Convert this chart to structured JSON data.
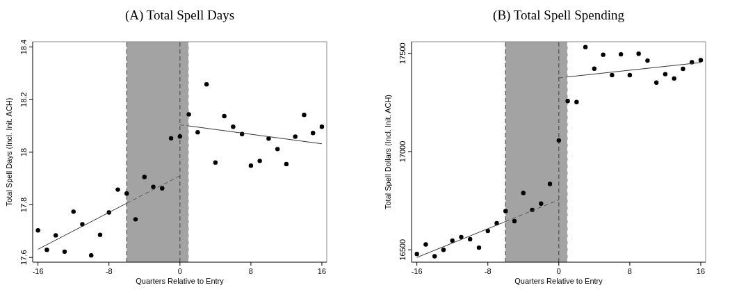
{
  "chart_data": [
    {
      "type": "scatter",
      "title": "(A)  Total Spell Days",
      "xlabel": "Quarters Relative to Entry",
      "ylabel": "Total Spell Days (Incl. Init. ACH)",
      "xlim": [
        -16.6,
        16.55
      ],
      "xticks": [
        -16,
        -8,
        0,
        8,
        16
      ],
      "ylim": [
        17.582,
        18.42
      ],
      "yticks": [
        17.6,
        17.8,
        18,
        18.2,
        18.4
      ],
      "grid": false,
      "series": [
        {
          "color": "#000000",
          "marker": "circle",
          "x": [
            -16,
            -15,
            -14,
            -13,
            -12,
            -11,
            -10,
            -9,
            -8,
            -7,
            -6,
            -5,
            -4,
            -3,
            -2,
            -1,
            0,
            1,
            2,
            3,
            4,
            5,
            6,
            7,
            8,
            9,
            10,
            11,
            12,
            13,
            14,
            15,
            16
          ],
          "values": [
            17.703,
            17.629,
            17.684,
            17.622,
            17.774,
            17.726,
            17.608,
            17.686,
            17.771,
            17.858,
            17.843,
            17.745,
            17.906,
            17.868,
            17.863,
            18.053,
            18.06,
            18.144,
            18.076,
            18.258,
            17.961,
            18.137,
            18.097,
            18.069,
            17.949,
            17.967,
            18.052,
            18.012,
            17.955,
            18.059,
            18.142,
            18.073,
            18.097
          ]
        },
        {
          "type": "line",
          "color": "#333333",
          "line_style": "solid",
          "x": [
            -16,
            -6
          ],
          "values": [
            17.631,
            17.806
          ]
        },
        {
          "type": "line",
          "color": "#555555",
          "line_style": "dashed",
          "x": [
            -6,
            0
          ],
          "values": [
            17.806,
            17.91
          ]
        },
        {
          "type": "line",
          "color": "#555555",
          "line_style": "dashed",
          "x": [
            0,
            1
          ],
          "values": [
            18.104,
            18.1
          ]
        },
        {
          "type": "line",
          "color": "#333333",
          "line_style": "solid",
          "x": [
            1,
            16
          ],
          "values": [
            18.1,
            18.032
          ]
        }
      ],
      "bands": [
        {
          "axis": "x",
          "from": -6,
          "to": 1,
          "color": "#a3a3a3"
        }
      ],
      "ref_lines": [
        {
          "axis": "x",
          "value": -6,
          "color": "#555555",
          "line_style": "dashed"
        },
        {
          "axis": "x",
          "value": 0,
          "color": "#555555",
          "line_style": "dashed"
        },
        {
          "axis": "x",
          "value": 1,
          "color": "#ffffff",
          "line_style": "dashed"
        }
      ]
    },
    {
      "type": "scatter",
      "title": "(B)  Total Spell Spending",
      "xlabel": "Quarters Relative to Entry",
      "ylabel": "Total Spell Dollars (Incl. Init. ACH)",
      "xlim": [
        -16.6,
        16.55
      ],
      "xticks": [
        -16,
        -8,
        0,
        8,
        16
      ],
      "ylim": [
        16437,
        17559
      ],
      "yticks": [
        16500,
        17000,
        17500
      ],
      "grid": false,
      "series": [
        {
          "color": "#000000",
          "marker": "circle",
          "x": [
            -16,
            -15,
            -14,
            -13,
            -12,
            -11,
            -10,
            -9,
            -8,
            -7,
            -6,
            -5,
            -4,
            -3,
            -2,
            -1,
            0,
            1,
            2,
            3,
            4,
            5,
            6,
            7,
            8,
            9,
            10,
            11,
            12,
            13,
            14,
            15,
            16
          ],
          "values": [
            16479,
            16527,
            16467,
            16500,
            16547,
            16565,
            16554,
            16511,
            16596,
            16635,
            16697,
            16646,
            16789,
            16703,
            16735,
            16835,
            17057,
            17257,
            17252,
            17532,
            17422,
            17493,
            17389,
            17495,
            17389,
            17498,
            17463,
            17351,
            17394,
            17372,
            17421,
            17455,
            17465
          ]
        },
        {
          "type": "line",
          "color": "#333333",
          "line_style": "solid",
          "x": [
            -16,
            -6
          ],
          "values": [
            16461,
            16644
          ]
        },
        {
          "type": "line",
          "color": "#555555",
          "line_style": "dashed",
          "x": [
            -6,
            0
          ],
          "values": [
            16644,
            16754
          ]
        },
        {
          "type": "line",
          "color": "#555555",
          "line_style": "dashed",
          "x": [
            0,
            1
          ],
          "values": [
            17375,
            17380
          ]
        },
        {
          "type": "line",
          "color": "#333333",
          "line_style": "solid",
          "x": [
            1,
            16
          ],
          "values": [
            17380,
            17453
          ]
        }
      ],
      "bands": [
        {
          "axis": "x",
          "from": -6,
          "to": 1,
          "color": "#a3a3a3"
        }
      ],
      "ref_lines": [
        {
          "axis": "x",
          "value": -6,
          "color": "#555555",
          "line_style": "dashed"
        },
        {
          "axis": "x",
          "value": 0,
          "color": "#555555",
          "line_style": "dashed"
        },
        {
          "axis": "x",
          "value": 1,
          "color": "#ffffff",
          "line_style": "dashed"
        }
      ]
    }
  ]
}
